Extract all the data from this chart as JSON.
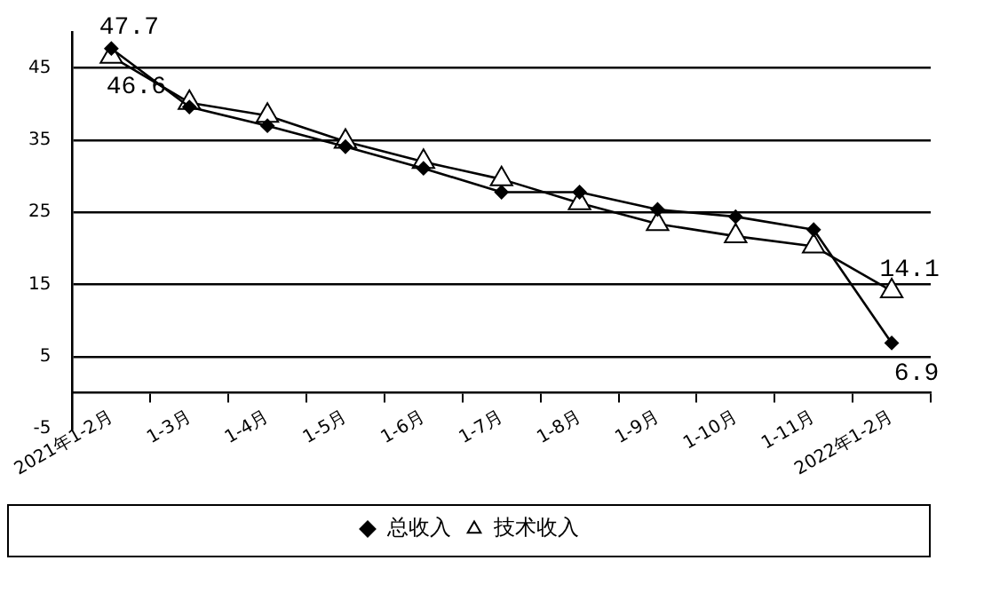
{
  "chart_data": {
    "type": "line",
    "categories": [
      "2021年1-2月",
      "1-3月",
      "1-4月",
      "1-5月",
      "1-6月",
      "1-7月",
      "1-8月",
      "1-9月",
      "1-10月",
      "1-11月",
      "2022年1-2月"
    ],
    "series": [
      {
        "name": "总收入",
        "color": "#000000",
        "marker": "diamond",
        "values": [
          47.7,
          39.6,
          37.0,
          34.1,
          31.1,
          27.8,
          27.8,
          25.4,
          24.4,
          22.6,
          6.9
        ],
        "value_labels": [
          "47.7",
          null,
          null,
          null,
          null,
          null,
          null,
          null,
          null,
          null,
          "6.9"
        ]
      },
      {
        "name": "技术收入",
        "color": "#000000",
        "marker": "triangle",
        "values": [
          46.6,
          40.2,
          38.4,
          34.8,
          32.0,
          29.6,
          26.3,
          23.4,
          21.7,
          20.3,
          14.1
        ],
        "value_labels": [
          "46.6",
          null,
          null,
          null,
          null,
          null,
          null,
          null,
          null,
          null,
          "14.1"
        ]
      }
    ],
    "ylim": [
      -5,
      50
    ],
    "yticks": [
      -5,
      5,
      15,
      25,
      35,
      45
    ],
    "grid": "y",
    "legend": "bottom",
    "line_style": "solid"
  }
}
